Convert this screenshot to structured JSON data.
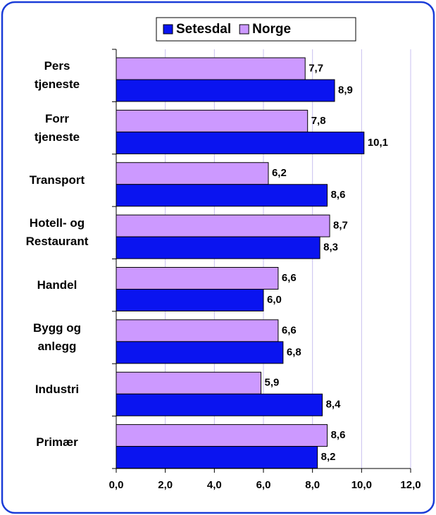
{
  "chart_data": {
    "type": "barh",
    "categories": [
      "Pers\ntjeneste",
      "Forr\ntjeneste",
      "Transport",
      "Hotell- og\nRestaurant",
      "Handel",
      "Bygg og\nanlegg",
      "Industri",
      "Primær"
    ],
    "series": [
      {
        "name": "Setesdal",
        "color": "#0a14f0",
        "values": [
          8.9,
          10.1,
          8.6,
          8.3,
          6.0,
          6.8,
          8.4,
          8.2
        ],
        "value_labels": [
          "8,9",
          "10,1",
          "8,6",
          "8,3",
          "6,0",
          "6,8",
          "8,4",
          "8,2"
        ]
      },
      {
        "name": "Norge",
        "color": "#cc99ff",
        "values": [
          7.7,
          7.8,
          6.2,
          8.7,
          6.6,
          6.6,
          5.9,
          8.6
        ],
        "value_labels": [
          "7,7",
          "7,8",
          "6,2",
          "8,7",
          "6,6",
          "6,6",
          "5,9",
          "8,6"
        ]
      }
    ],
    "xlim": [
      0,
      12
    ],
    "xticks": [
      {
        "value": 0,
        "label": "0,0"
      },
      {
        "value": 2,
        "label": "2,0"
      },
      {
        "value": 4,
        "label": "4,0"
      },
      {
        "value": 6,
        "label": "6,0"
      },
      {
        "value": 8,
        "label": "8,0"
      },
      {
        "value": 10,
        "label": "10,0"
      },
      {
        "value": 12,
        "label": "12,0"
      }
    ],
    "grid": true,
    "legend": "top"
  }
}
